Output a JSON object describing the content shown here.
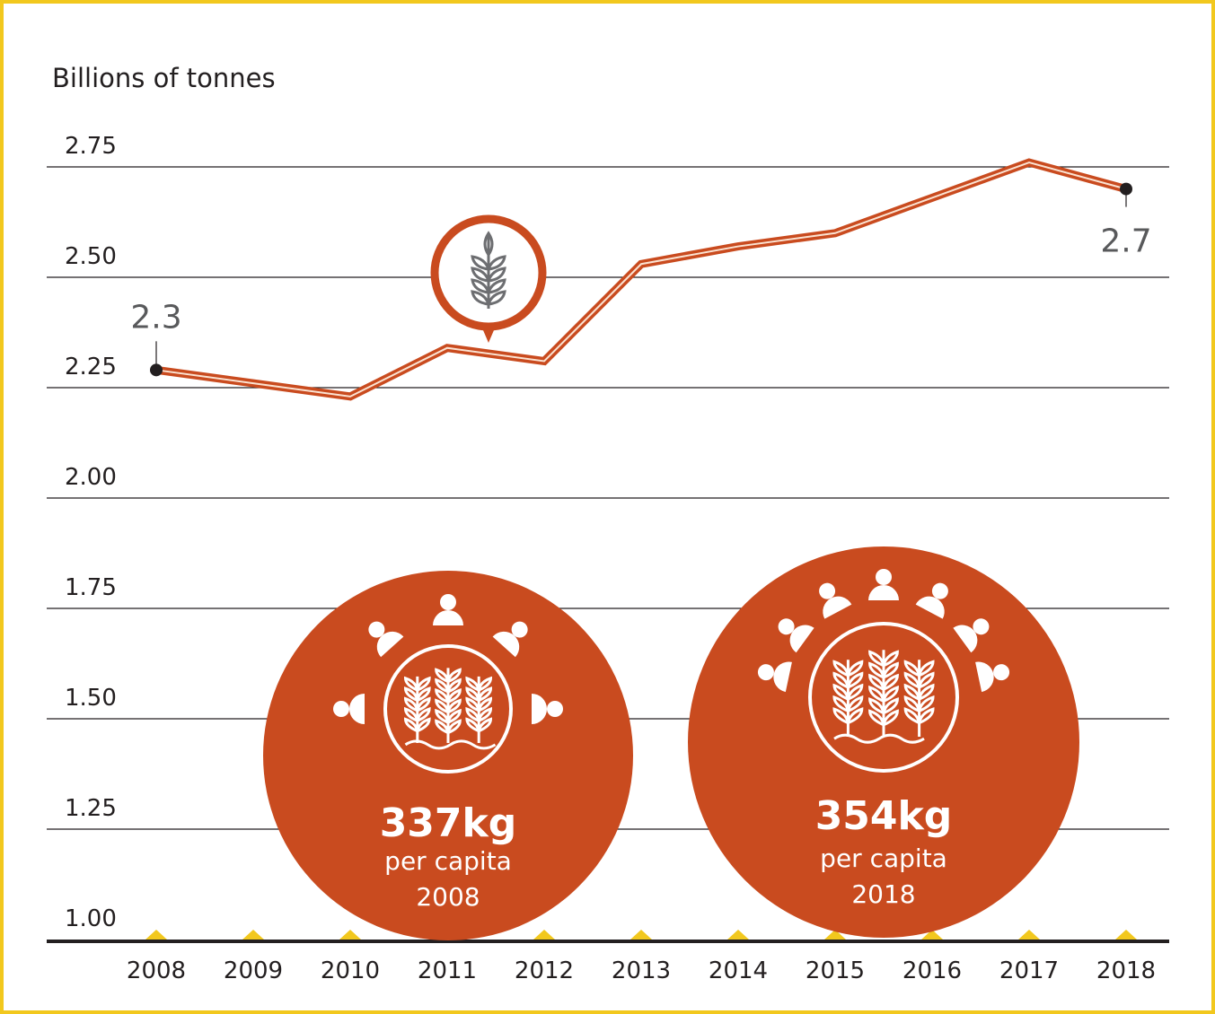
{
  "chart_data": {
    "type": "line",
    "ylabel": "Billions of tonnes",
    "ylim": [
      1.0,
      2.75
    ],
    "yticks": [
      "2.75",
      "2.50",
      "2.25",
      "2.00",
      "1.75",
      "1.50",
      "1.25",
      "1.00"
    ],
    "ytick_values": [
      2.75,
      2.5,
      2.25,
      2.0,
      1.75,
      1.5,
      1.25,
      1.0
    ],
    "grid": true,
    "categories": [
      "2008",
      "2009",
      "2010",
      "2011",
      "2012",
      "2013",
      "2014",
      "2015",
      "2016",
      "2017",
      "2018"
    ],
    "values": [
      2.29,
      2.26,
      2.23,
      2.34,
      2.31,
      2.53,
      2.57,
      2.6,
      2.68,
      2.76,
      2.7
    ],
    "annotations": [
      {
        "year": "2008",
        "label": "2.3"
      },
      {
        "year": "2018",
        "label": "2.7"
      }
    ],
    "marker_icon": "wheat-pin-icon",
    "colors": {
      "line": "#c94b1f",
      "frame": "#f2c81e",
      "axis": "#231f20",
      "label": "#58595b"
    }
  },
  "callouts": [
    {
      "value": "337kg",
      "unit": "per capita",
      "year": "2008",
      "icon": "wheat-with-people-icon"
    },
    {
      "value": "354kg",
      "unit": "per capita",
      "year": "2018",
      "icon": "wheat-with-more-people-icon"
    }
  ]
}
